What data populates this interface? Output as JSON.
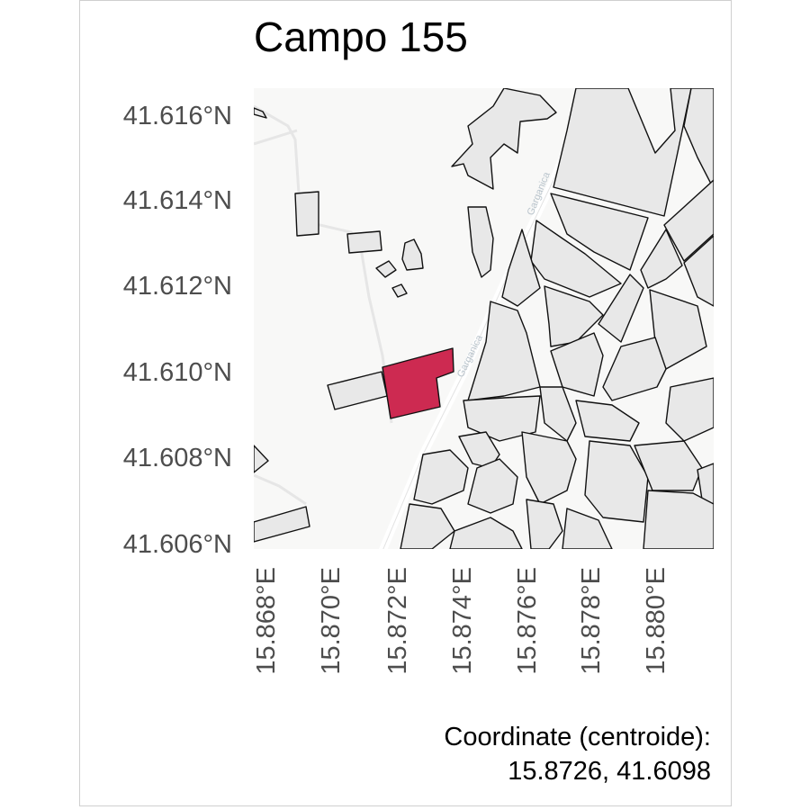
{
  "title": "Campo 155",
  "y_ticks": [
    "41.616°N",
    "41.614°N",
    "41.612°N",
    "41.610°N",
    "41.608°N",
    "41.606°N"
  ],
  "x_ticks": [
    "15.868°E",
    "15.870°E",
    "15.872°E",
    "15.874°E",
    "15.876°E",
    "15.878°E",
    "15.880°E"
  ],
  "caption": {
    "line1": "Coordinate (centroide):",
    "line2": "15.8726, 41.6098"
  },
  "road_labels": [
    "Garganica",
    "Garganica"
  ],
  "colors": {
    "highlight": "#cd2a51",
    "parcel_fill": "#e8e8e8",
    "parcel_stroke": "#111111",
    "basemap": "#f8f8f7"
  },
  "chart_data": {
    "type": "map",
    "title": "Campo 155",
    "highlighted_parcel": "Campo 155",
    "centroid": {
      "lon": 15.8726,
      "lat": 41.6098
    },
    "xlim": [
      15.8675,
      15.882
    ],
    "ylim": [
      41.606,
      41.6167
    ],
    "x_ticks": [
      15.868,
      15.87,
      15.872,
      15.874,
      15.876,
      15.878,
      15.88
    ],
    "y_ticks": [
      41.616,
      41.614,
      41.612,
      41.61,
      41.608,
      41.606
    ]
  }
}
